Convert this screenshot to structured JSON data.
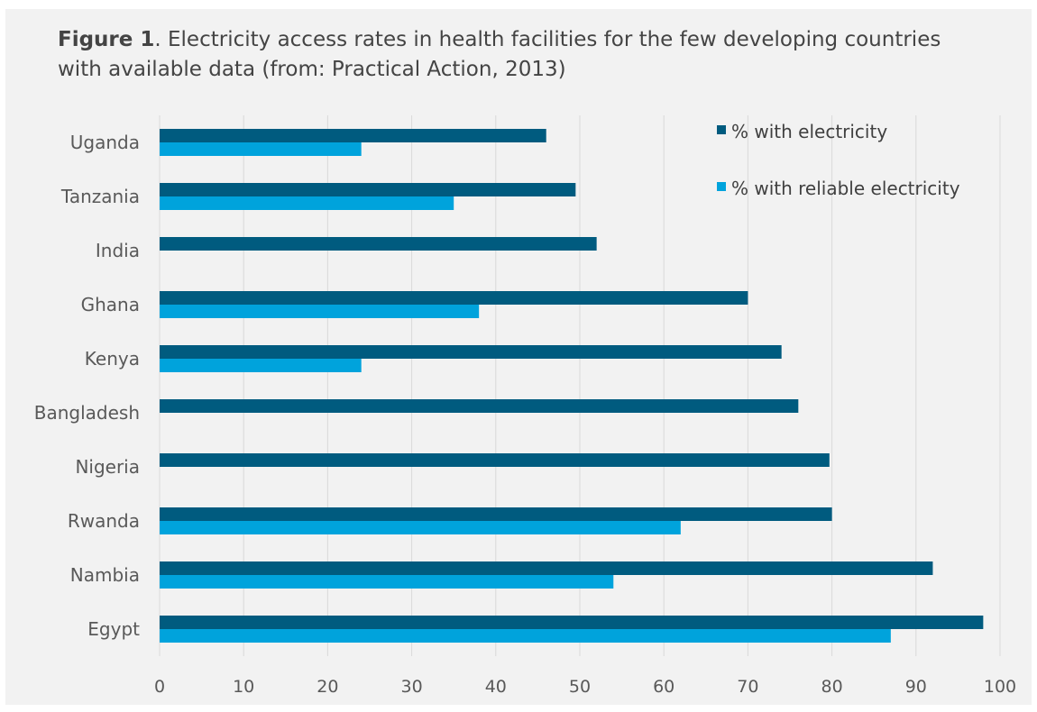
{
  "caption": {
    "label": "Figure 1",
    "text": ". Electricity access rates in health facilities for the few developing countries with available data (from: Practical Action, 2013)"
  },
  "chart_data": {
    "type": "bar",
    "orientation": "horizontal",
    "title": "",
    "xlabel": "",
    "ylabel": "",
    "xlim": [
      0,
      100
    ],
    "xticks": [
      0,
      10,
      20,
      30,
      40,
      50,
      60,
      70,
      80,
      90,
      100
    ],
    "grid": true,
    "legend_position": "top-right",
    "categories": [
      "Uganda",
      "Tanzania",
      "India",
      "Ghana",
      "Kenya",
      "Bangladesh",
      "Nigeria",
      "Rwanda",
      "Nambia",
      "Egypt"
    ],
    "series": [
      {
        "name": "% with electricity",
        "color": "#005b7f",
        "values": [
          46,
          49.5,
          52,
          70,
          74,
          76,
          79.7,
          80,
          92,
          98
        ]
      },
      {
        "name": "% with reliable electricity",
        "color": "#00a3dc",
        "values": [
          24,
          35,
          null,
          38,
          24,
          null,
          null,
          62,
          54,
          87
        ]
      }
    ]
  }
}
